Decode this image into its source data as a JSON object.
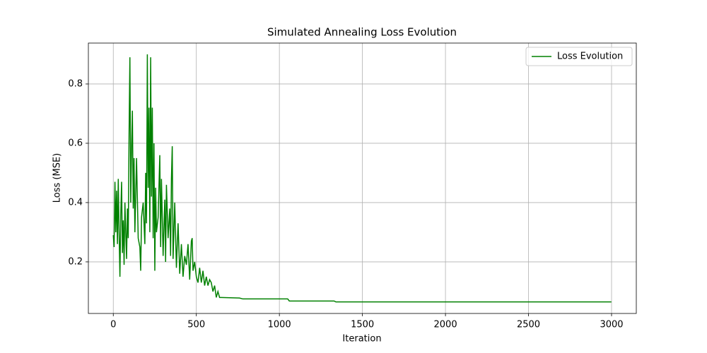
{
  "chart_data": {
    "type": "line",
    "title": "Simulated Annealing Loss Evolution",
    "x_label": "Iteration",
    "y_label": "Loss (MSE)",
    "x": [
      0,
      5,
      10,
      15,
      20,
      25,
      30,
      35,
      40,
      45,
      50,
      55,
      60,
      65,
      70,
      75,
      80,
      85,
      90,
      95,
      100,
      105,
      110,
      115,
      120,
      125,
      130,
      140,
      150,
      160,
      165,
      170,
      180,
      190,
      195,
      200,
      205,
      210,
      215,
      220,
      225,
      230,
      235,
      240,
      245,
      250,
      255,
      260,
      270,
      280,
      285,
      290,
      300,
      310,
      315,
      320,
      330,
      340,
      345,
      350,
      355,
      360,
      370,
      380,
      390,
      400,
      410,
      420,
      430,
      440,
      450,
      460,
      470,
      475,
      480,
      490,
      500,
      510,
      520,
      530,
      540,
      550,
      560,
      570,
      580,
      590,
      600,
      610,
      620,
      630,
      640,
      650,
      760,
      780,
      1050,
      1060,
      1330,
      1340,
      2999
    ],
    "series": [
      {
        "name": "Loss Evolution",
        "color": "#008000",
        "values": [
          0.29,
          0.25,
          0.47,
          0.3,
          0.44,
          0.26,
          0.48,
          0.3,
          0.15,
          0.36,
          0.47,
          0.23,
          0.34,
          0.19,
          0.4,
          0.3,
          0.21,
          0.38,
          0.28,
          0.63,
          0.89,
          0.4,
          0.58,
          0.71,
          0.38,
          0.55,
          0.3,
          0.55,
          0.28,
          0.25,
          0.17,
          0.35,
          0.4,
          0.26,
          0.5,
          0.33,
          0.9,
          0.45,
          0.72,
          0.3,
          0.89,
          0.42,
          0.72,
          0.28,
          0.6,
          0.17,
          0.45,
          0.3,
          0.35,
          0.56,
          0.25,
          0.48,
          0.22,
          0.41,
          0.2,
          0.46,
          0.28,
          0.38,
          0.22,
          0.48,
          0.59,
          0.21,
          0.4,
          0.18,
          0.33,
          0.16,
          0.26,
          0.15,
          0.22,
          0.19,
          0.26,
          0.14,
          0.27,
          0.28,
          0.17,
          0.2,
          0.15,
          0.13,
          0.18,
          0.13,
          0.17,
          0.12,
          0.15,
          0.12,
          0.14,
          0.13,
          0.1,
          0.12,
          0.08,
          0.1,
          0.08,
          0.08,
          0.078,
          0.075,
          0.075,
          0.068,
          0.068,
          0.065,
          0.065
        ]
      }
    ],
    "xlim": [
      -150,
      3149
    ],
    "ylim": [
      0.026,
      0.938
    ],
    "xticks": [
      0,
      500,
      1000,
      1500,
      2000,
      2500,
      3000
    ],
    "yticks": [
      0.2,
      0.4,
      0.6,
      0.8
    ],
    "grid": true,
    "legend": "upper right"
  }
}
